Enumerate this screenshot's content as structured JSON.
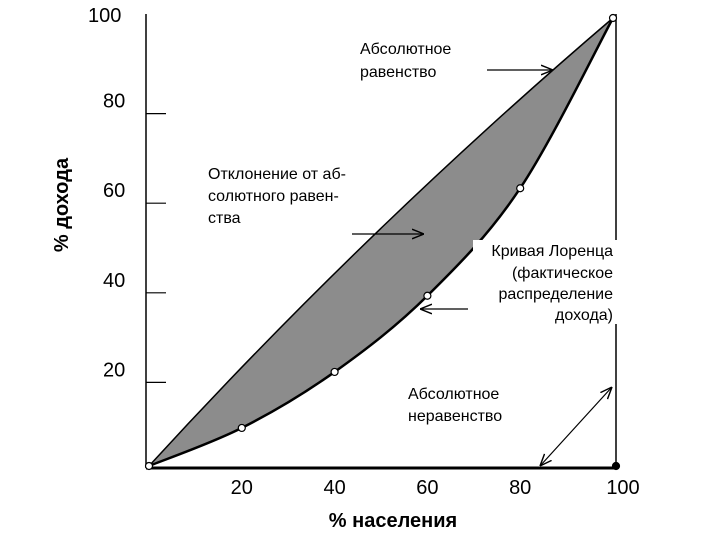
{
  "chart_data": {
    "type": "area",
    "title": "",
    "xlabel": "% населения",
    "ylabel": "% дохода",
    "xlim": [
      0,
      100
    ],
    "ylim": [
      0,
      100
    ],
    "grid": false,
    "x_ticks": [
      "20",
      "40",
      "60",
      "80",
      "100"
    ],
    "y_ticks": [
      "20",
      "40",
      "60",
      "80",
      "100"
    ],
    "series": [
      {
        "name": "",
        "x": [
          0,
          100
        ],
        "y": [
          0,
          100
        ]
      },
      {
        "name": "",
        "x": [
          0,
          20,
          40,
          60,
          80,
          100
        ],
        "y": [
          0,
          8.5,
          21,
          38,
          62,
          100
        ]
      }
    ],
    "annotations": {
      "equality": [
        "Абсолютное",
        "равенство"
      ],
      "deviation": [
        "Отклонение от аб-",
        "солютного равен-",
        "ства"
      ],
      "lorenz": [
        "Кривая Лоренца",
        "(фактическое",
        "распределение",
        "дохода)"
      ],
      "inequality": [
        "Абсолютное",
        "неравенство"
      ]
    },
    "colors": {
      "fill": "#8c8c8c",
      "line": "#000000",
      "background": "#ffffff"
    }
  }
}
